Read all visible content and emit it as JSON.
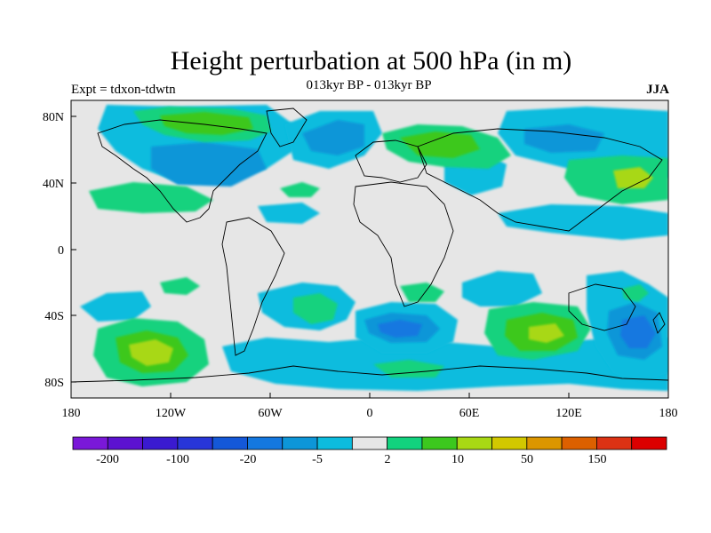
{
  "header": {
    "title": "Height perturbation at 500 hPa (in m)",
    "subtitle": "013kyr BP - 013kyr BP",
    "left_label": "Expt = tdxon-tdwtn",
    "right_label": "JJA"
  },
  "map": {
    "y_ticks": [
      "80N",
      "40N",
      "0",
      "40S",
      "80S"
    ],
    "x_ticks": [
      "180",
      "120W",
      "60W",
      "0",
      "60E",
      "120E",
      "180"
    ]
  },
  "colorbar": {
    "colors": [
      "#7a18d8",
      "#5c12d0",
      "#3a1ad0",
      "#2836d8",
      "#1458d8",
      "#1478e0",
      "#0d96d8",
      "#0cbcde",
      "#e6e6e6",
      "#12d27e",
      "#3cc81e",
      "#a8d814",
      "#d2c800",
      "#dc9600",
      "#dc6000",
      "#dc3214",
      "#dc0000"
    ],
    "labels": [
      "-200",
      "-100",
      "-20",
      "-5",
      "2",
      "10",
      "50",
      "150"
    ]
  },
  "palette": {
    "neutral": "#e6e6e6",
    "neg1": "#0cbcde",
    "neg2": "#0d96d8",
    "neg3": "#1478e0",
    "pos1": "#12d27e",
    "pos2": "#3cc81e",
    "pos3": "#a8d814"
  }
}
